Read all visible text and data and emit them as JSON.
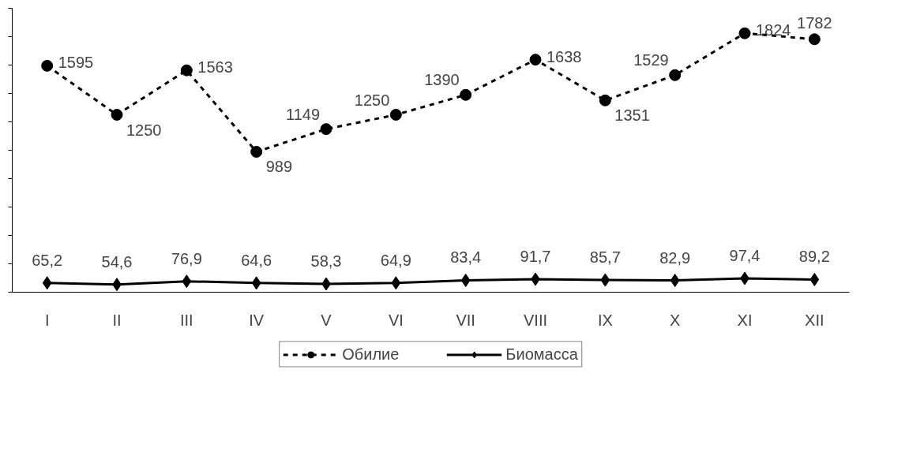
{
  "chart_data": {
    "type": "line",
    "categories": [
      "I",
      "II",
      "III",
      "IV",
      "V",
      "VI",
      "VII",
      "VIII",
      "IX",
      "X",
      "XI",
      "XII"
    ],
    "series": [
      {
        "name": "Обилие",
        "color": "#000000",
        "marker": "circle",
        "line_style": "dashed",
        "values": [
          1595,
          1250,
          1563,
          989,
          1149,
          1250,
          1390,
          1638,
          1351,
          1529,
          1824,
          1782
        ],
        "value_labels": [
          "1595",
          "1250",
          "1563",
          "989",
          "1149",
          "1250",
          "1390",
          "1638",
          "1351",
          "1529",
          "1824",
          "1782"
        ]
      },
      {
        "name": "Биомасса",
        "color": "#000000",
        "marker": "diamond",
        "line_style": "solid",
        "values": [
          65.2,
          54.6,
          76.9,
          64.6,
          58.3,
          64.9,
          83.4,
          91.7,
          85.7,
          82.9,
          97.4,
          89.2
        ],
        "value_labels": [
          "65,2",
          "54,6",
          "76,9",
          "64,6",
          "58,3",
          "64,9",
          "83,4",
          "91,7",
          "85,7",
          "82,9",
          "97,4",
          "89,2"
        ]
      }
    ],
    "ylim": [
      0,
      2000
    ],
    "yticks": [
      {
        "value": 0,
        "label": null
      },
      {
        "value": 200,
        "label": null
      },
      {
        "value": 400,
        "label": null
      },
      {
        "value": 600,
        "label": null
      },
      {
        "value": 800,
        "label": null
      },
      {
        "value": 1000,
        "label": null
      },
      {
        "value": 1200,
        "label": null
      },
      {
        "value": 1400,
        "label": null
      },
      {
        "value": 1600,
        "label": null
      },
      {
        "value": 1800,
        "label": null
      },
      {
        "value": 2000,
        "label": null
      }
    ],
    "tick_labels": "x",
    "grid": false,
    "legend": "bottom"
  }
}
